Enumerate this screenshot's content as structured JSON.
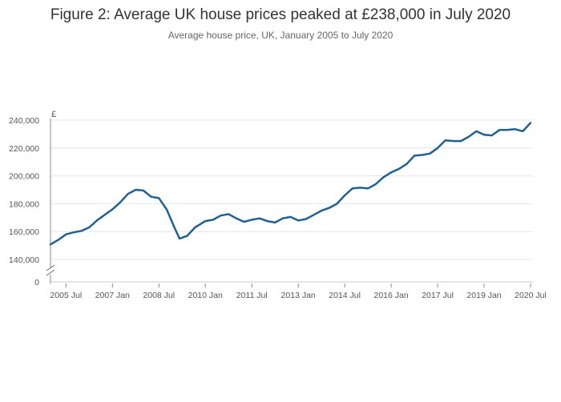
{
  "chart_data": {
    "type": "line",
    "title": "Figure 2: Average UK house prices peaked at £238,000 in July 2020",
    "subtitle": "Average house price, UK, January 2005 to July 2020",
    "ylabel": "£",
    "xlabel": "",
    "ylim": [
      140000,
      240000
    ],
    "y_break": true,
    "y_ticks": [
      {
        "value": 240000,
        "label": "240,000"
      },
      {
        "value": 220000,
        "label": "220,000"
      },
      {
        "value": 200000,
        "label": "200,000"
      },
      {
        "value": 180000,
        "label": "180,000"
      },
      {
        "value": 160000,
        "label": "160,000"
      },
      {
        "value": 140000,
        "label": "140,000"
      }
    ],
    "y_zero_label": "0",
    "x_ticks": [
      {
        "date": "2005-07",
        "label": "2005 Jul"
      },
      {
        "date": "2007-01",
        "label": "2007 Jan"
      },
      {
        "date": "2008-07",
        "label": "2008 Jul"
      },
      {
        "date": "2010-01",
        "label": "2010 Jan"
      },
      {
        "date": "2011-07",
        "label": "2011 Jul"
      },
      {
        "date": "2013-01",
        "label": "2013 Jan"
      },
      {
        "date": "2014-07",
        "label": "2014 Jul"
      },
      {
        "date": "2016-01",
        "label": "2016 Jan"
      },
      {
        "date": "2017-07",
        "label": "2017 Jul"
      },
      {
        "date": "2019-01",
        "label": "2019 Jan"
      },
      {
        "date": "2020-07",
        "label": "2020 Jul"
      }
    ],
    "grid": true,
    "line_color": "#206095",
    "series": [
      {
        "name": "",
        "points": [
          {
            "x": "2005-01",
            "y": 150800
          },
          {
            "x": "2005-04",
            "y": 154000
          },
          {
            "x": "2005-07",
            "y": 158000
          },
          {
            "x": "2005-10",
            "y": 159500
          },
          {
            "x": "2006-01",
            "y": 160500
          },
          {
            "x": "2006-04",
            "y": 163000
          },
          {
            "x": "2006-07",
            "y": 168000
          },
          {
            "x": "2006-10",
            "y": 172000
          },
          {
            "x": "2007-01",
            "y": 176000
          },
          {
            "x": "2007-04",
            "y": 181000
          },
          {
            "x": "2007-07",
            "y": 187000
          },
          {
            "x": "2007-10",
            "y": 190000
          },
          {
            "x": "2008-01",
            "y": 189500
          },
          {
            "x": "2008-04",
            "y": 185000
          },
          {
            "x": "2008-07",
            "y": 184000
          },
          {
            "x": "2008-10",
            "y": 176000
          },
          {
            "x": "2009-01",
            "y": 163000
          },
          {
            "x": "2009-03",
            "y": 155000
          },
          {
            "x": "2009-06",
            "y": 157000
          },
          {
            "x": "2009-09",
            "y": 163000
          },
          {
            "x": "2010-01",
            "y": 167500
          },
          {
            "x": "2010-04",
            "y": 168500
          },
          {
            "x": "2010-07",
            "y": 171500
          },
          {
            "x": "2010-10",
            "y": 172500
          },
          {
            "x": "2011-01",
            "y": 169500
          },
          {
            "x": "2011-04",
            "y": 167000
          },
          {
            "x": "2011-07",
            "y": 168500
          },
          {
            "x": "2011-10",
            "y": 169500
          },
          {
            "x": "2012-01",
            "y": 167500
          },
          {
            "x": "2012-04",
            "y": 166500
          },
          {
            "x": "2012-07",
            "y": 169500
          },
          {
            "x": "2012-10",
            "y": 170500
          },
          {
            "x": "2013-01",
            "y": 168000
          },
          {
            "x": "2013-04",
            "y": 169000
          },
          {
            "x": "2013-07",
            "y": 172000
          },
          {
            "x": "2013-10",
            "y": 175000
          },
          {
            "x": "2014-01",
            "y": 177000
          },
          {
            "x": "2014-04",
            "y": 180000
          },
          {
            "x": "2014-07",
            "y": 186000
          },
          {
            "x": "2014-10",
            "y": 191000
          },
          {
            "x": "2015-01",
            "y": 191500
          },
          {
            "x": "2015-04",
            "y": 191000
          },
          {
            "x": "2015-07",
            "y": 194000
          },
          {
            "x": "2015-10",
            "y": 199000
          },
          {
            "x": "2016-01",
            "y": 202500
          },
          {
            "x": "2016-04",
            "y": 205000
          },
          {
            "x": "2016-07",
            "y": 208500
          },
          {
            "x": "2016-10",
            "y": 214500
          },
          {
            "x": "2017-01",
            "y": 215000
          },
          {
            "x": "2017-04",
            "y": 216000
          },
          {
            "x": "2017-07",
            "y": 220000
          },
          {
            "x": "2017-10",
            "y": 225500
          },
          {
            "x": "2018-01",
            "y": 225000
          },
          {
            "x": "2018-04",
            "y": 225000
          },
          {
            "x": "2018-07",
            "y": 228000
          },
          {
            "x": "2018-10",
            "y": 232000
          },
          {
            "x": "2019-01",
            "y": 229500
          },
          {
            "x": "2019-04",
            "y": 229000
          },
          {
            "x": "2019-07",
            "y": 233000
          },
          {
            "x": "2019-10",
            "y": 233000
          },
          {
            "x": "2020-01",
            "y": 233500
          },
          {
            "x": "2020-04",
            "y": 232000
          },
          {
            "x": "2020-07",
            "y": 238000
          }
        ]
      }
    ]
  }
}
